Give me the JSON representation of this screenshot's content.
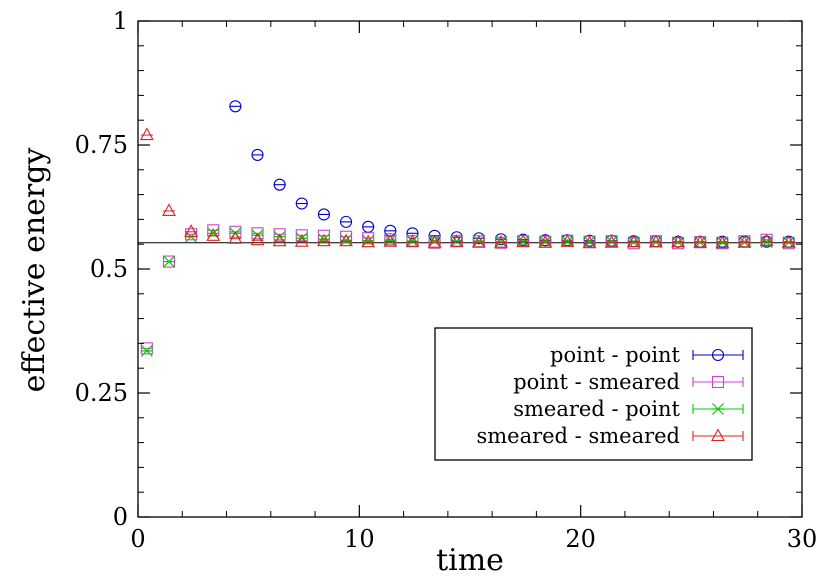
{
  "chart_data": {
    "type": "scatter",
    "title": "",
    "xlabel": "time",
    "ylabel": "effective energy",
    "xlim": [
      0,
      30
    ],
    "ylim": [
      0,
      1
    ],
    "x_ticks": [
      "0",
      "10",
      "20",
      "30"
    ],
    "y_ticks": [
      "0",
      "0.25",
      "0.5",
      "0.75",
      "1"
    ],
    "grid": false,
    "legend_position": "bottom-right",
    "reference_line": 0.553,
    "series": [
      {
        "name": "point - point",
        "color": "#0000cc",
        "marker": "circle",
        "x": [
          4.4,
          5.4,
          6.4,
          7.4,
          8.4,
          9.4,
          10.4,
          11.4,
          12.4,
          13.4,
          14.4,
          15.4,
          16.4,
          17.4,
          18.4,
          19.4,
          20.4,
          21.4,
          22.4,
          23.4,
          24.4,
          25.4,
          26.4,
          27.4,
          28.4,
          29.4
        ],
        "y": [
          0.828,
          0.73,
          0.67,
          0.632,
          0.61,
          0.595,
          0.585,
          0.577,
          0.572,
          0.567,
          0.564,
          0.562,
          0.56,
          0.559,
          0.558,
          0.558,
          0.557,
          0.557,
          0.556,
          0.556,
          0.555,
          0.555,
          0.555,
          0.555,
          0.555,
          0.555
        ]
      },
      {
        "name": "point - smeared",
        "color": "#cc44cc",
        "marker": "square",
        "x": [
          0.4,
          1.4,
          2.4,
          3.4,
          4.4,
          5.4,
          6.4,
          7.4,
          8.4,
          9.4,
          10.4,
          11.4,
          12.4,
          13.4,
          14.4,
          15.4,
          16.4,
          17.4,
          18.4,
          19.4,
          20.4,
          21.4,
          22.4,
          23.4,
          24.4,
          25.4,
          26.4,
          27.4,
          28.4,
          29.4
        ],
        "y": [
          0.34,
          0.515,
          0.57,
          0.578,
          0.575,
          0.572,
          0.57,
          0.568,
          0.567,
          0.565,
          0.562,
          0.56,
          0.556,
          0.553,
          0.556,
          0.556,
          0.553,
          0.556,
          0.555,
          0.557,
          0.555,
          0.556,
          0.552,
          0.556,
          0.552,
          0.554,
          0.552,
          0.556,
          0.559,
          0.552
        ]
      },
      {
        "name": "smeared - point",
        "color": "#00cc00",
        "marker": "cross",
        "x": [
          0.4,
          1.4,
          2.4,
          3.4,
          4.4,
          5.4,
          6.4,
          7.4,
          8.4,
          9.4,
          10.4,
          11.4,
          12.4,
          13.4,
          14.4,
          15.4,
          16.4,
          17.4,
          18.4,
          19.4,
          20.4,
          21.4,
          22.4,
          23.4,
          24.4,
          25.4,
          26.4,
          27.4,
          28.4,
          29.4
        ],
        "y": [
          0.335,
          0.515,
          0.565,
          0.572,
          0.572,
          0.568,
          0.565,
          0.562,
          0.56,
          0.558,
          0.557,
          0.557,
          0.556,
          0.556,
          0.556,
          0.556,
          0.555,
          0.555,
          0.555,
          0.555,
          0.555,
          0.555,
          0.554,
          0.554,
          0.554,
          0.554,
          0.554,
          0.554,
          0.554,
          0.554
        ]
      },
      {
        "name": "smeared - smeared",
        "color": "#dd2222",
        "marker": "triangle",
        "x": [
          0.4,
          1.4,
          2.4,
          3.4,
          4.4,
          5.4,
          6.4,
          7.4,
          8.4,
          9.4,
          10.4,
          11.4,
          12.4,
          13.4,
          14.4,
          15.4,
          16.4,
          17.4,
          18.4,
          19.4,
          20.4,
          21.4,
          22.4,
          23.4,
          24.4,
          25.4,
          26.4,
          27.4,
          28.4,
          29.4
        ],
        "y": [
          0.77,
          0.617,
          0.575,
          0.567,
          0.561,
          0.558,
          0.556,
          0.555,
          0.556,
          0.556,
          0.554,
          0.555,
          0.555,
          0.553,
          0.555,
          0.553,
          0.553,
          0.555,
          0.553,
          0.555,
          0.552,
          0.553,
          0.554,
          0.554,
          0.554,
          0.553,
          0.552,
          0.553,
          0.556,
          0.553
        ]
      }
    ]
  }
}
